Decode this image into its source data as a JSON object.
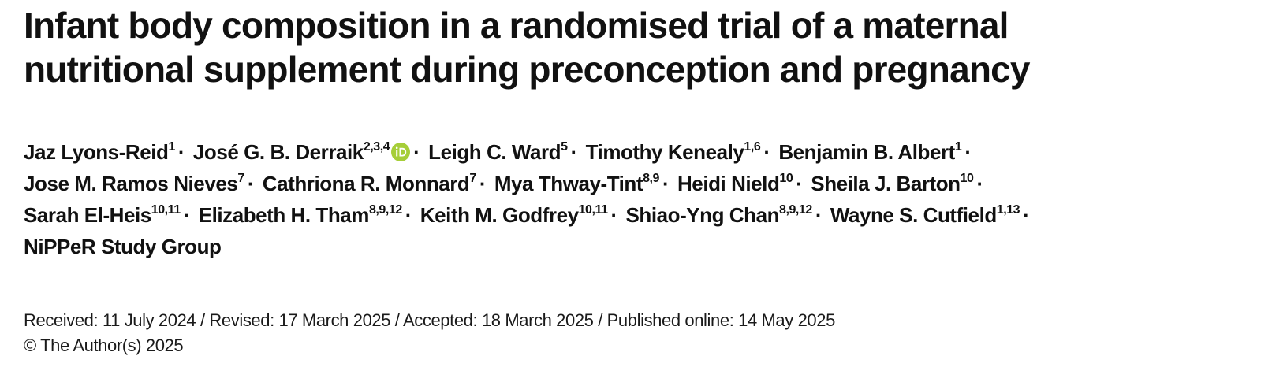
{
  "article": {
    "title_line1": "Infant body composition in a randomised trial of a maternal",
    "title_line2": "nutritional supplement during preconception and pregnancy"
  },
  "authors": [
    {
      "name": "Jaz Lyons-Reid",
      "aff": "1"
    },
    {
      "name": "José G. B. Derraik",
      "aff": "2,3,4",
      "orcid": true
    },
    {
      "name": "Leigh C. Ward",
      "aff": "5"
    },
    {
      "name": "Timothy Kenealy",
      "aff": "1,6"
    },
    {
      "name": "Benjamin B. Albert",
      "aff": "1"
    },
    {
      "name": "Jose M. Ramos Nieves",
      "aff": "7"
    },
    {
      "name": "Cathriona R. Monnard",
      "aff": "7"
    },
    {
      "name": "Mya Thway-Tint",
      "aff": "8,9"
    },
    {
      "name": "Heidi Nield",
      "aff": "10"
    },
    {
      "name": "Sheila J. Barton",
      "aff": "10"
    },
    {
      "name": "Sarah El-Heis",
      "aff": "10,11"
    },
    {
      "name": "Elizabeth H. Tham",
      "aff": "8,9,12"
    },
    {
      "name": "Keith M. Godfrey",
      "aff": "10,11"
    },
    {
      "name": "Shiao-Yng Chan",
      "aff": "8,9,12"
    },
    {
      "name": "Wayne S. Cutfield",
      "aff": "1,13"
    },
    {
      "name": "NiPPeR Study Group",
      "aff": ""
    }
  ],
  "author_separator": "·",
  "orcid_icon": "orcid-icon",
  "orcid_color": "#a6ce39",
  "dates": {
    "line": "Received: 11 July 2024 / Revised: 17 March 2025 / Accepted: 18 March 2025 / Published online: 14 May 2025"
  },
  "copyright": {
    "line": "© The Author(s) 2025"
  }
}
